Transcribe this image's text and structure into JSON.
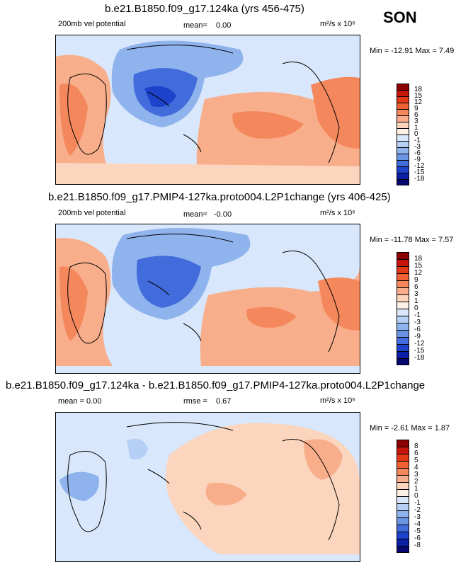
{
  "season": "SON",
  "panels": [
    {
      "title": "b.e21.B1850.f09_g17.124ka (yrs 456-475)",
      "left_label": "200mb vel potential",
      "stat_label": "mean=",
      "stat_value": "0.00",
      "units": "m²/s x 10⁶",
      "minmax": "Min = -12.91 Max =   7.49",
      "levels": [
        "18",
        "15",
        "12",
        "9",
        "6",
        "3",
        "1",
        "0",
        "-1",
        "-3",
        "-6",
        "-9",
        "-12",
        "-15",
        "-18"
      ],
      "colors": [
        "#8b0000",
        "#c8150b",
        "#e23a16",
        "#ef6033",
        "#f4875c",
        "#f8ae8a",
        "#fbd5bd",
        "#fdf1e6",
        "#d8e7fb",
        "#b5cff5",
        "#8fb3ed",
        "#6b93e3",
        "#426cdb",
        "#1d43cc",
        "#0b1fa6",
        "#06086e"
      ]
    },
    {
      "title": "b.e21.B1850.f09_g17.PMIP4-127ka.proto004.L2P1change (yrs 406-425)",
      "left_label": "200mb vel potential",
      "stat_label": "mean=",
      "stat_value": "-0.00",
      "units": "m²/s x 10⁶",
      "minmax": "Min = -11.78 Max =   7.57",
      "levels": [
        "18",
        "15",
        "12",
        "9",
        "6",
        "3",
        "1",
        "0",
        "-1",
        "-3",
        "-6",
        "-9",
        "-12",
        "-15",
        "-18"
      ],
      "colors": [
        "#8b0000",
        "#c8150b",
        "#e23a16",
        "#ef6033",
        "#f4875c",
        "#f8ae8a",
        "#fbd5bd",
        "#fdf1e6",
        "#d8e7fb",
        "#b5cff5",
        "#8fb3ed",
        "#6b93e3",
        "#426cdb",
        "#1d43cc",
        "#0b1fa6",
        "#06086e"
      ]
    },
    {
      "title": "b.e21.B1850.f09_g17.124ka - b.e21.B1850.f09_g17.PMIP4-127ka.proto004.L2P1change",
      "left_label": "mean =   0.00",
      "stat_label": "rmse =",
      "stat_value": "0.67",
      "units": "m²/s x 10⁶",
      "minmax": "Min =  -2.61 Max =   1.87",
      "levels": [
        "8",
        "6",
        "5",
        "4",
        "3",
        "2",
        "1",
        "0",
        "-1",
        "-2",
        "-3",
        "-4",
        "-5",
        "-6",
        "-8"
      ],
      "colors": [
        "#8b0000",
        "#c8150b",
        "#e23a16",
        "#ef6033",
        "#f4875c",
        "#f8ae8a",
        "#fbd5bd",
        "#fdf1e6",
        "#d8e7fb",
        "#b5cff5",
        "#8fb3ed",
        "#6b93e3",
        "#426cdb",
        "#1d43cc",
        "#0b1fa6",
        "#06086e"
      ]
    }
  ]
}
